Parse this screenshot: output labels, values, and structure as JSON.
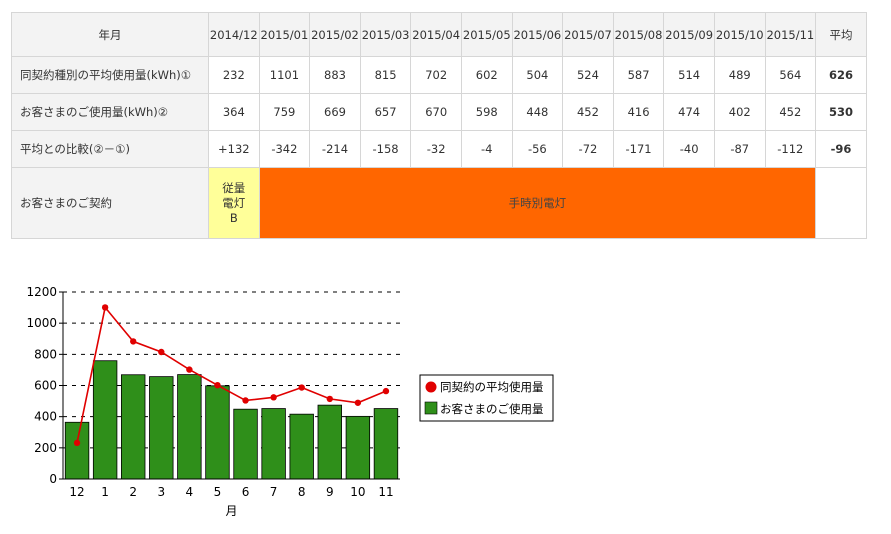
{
  "table": {
    "header_label": "年月",
    "months": [
      "2014/12",
      "2015/01",
      "2015/02",
      "2015/03",
      "2015/04",
      "2015/05",
      "2015/06",
      "2015/07",
      "2015/08",
      "2015/09",
      "2015/10",
      "2015/11"
    ],
    "avg_header": "平均",
    "rows": [
      {
        "label": "同契約種別の平均使用量(kWh)①",
        "values": [
          "232",
          "1101",
          "883",
          "815",
          "702",
          "602",
          "504",
          "524",
          "587",
          "514",
          "489",
          "564"
        ],
        "avg": "626"
      },
      {
        "label": "お客さまのご使用量(kWh)②",
        "values": [
          "364",
          "759",
          "669",
          "657",
          "670",
          "598",
          "448",
          "452",
          "416",
          "474",
          "402",
          "452"
        ],
        "avg": "530"
      },
      {
        "label": "平均との比較(②－①)",
        "values": [
          "+132",
          "-342",
          "-214",
          "-158",
          "-32",
          "-4",
          "-56",
          "-72",
          "-171",
          "-40",
          "-87",
          "-112"
        ],
        "avg": "-96"
      }
    ],
    "contract": {
      "label": "お客さまのご契約",
      "plan_a_lines": [
        "従量",
        "電灯",
        "B"
      ],
      "plan_b": "手時別電灯",
      "colors": {
        "plan_a": "#ffff99",
        "plan_b": "#ff6600"
      }
    }
  },
  "chart_data": {
    "type": "bar",
    "categories": [
      "12",
      "1",
      "2",
      "3",
      "4",
      "5",
      "6",
      "7",
      "8",
      "9",
      "10",
      "11"
    ],
    "series": [
      {
        "name": "同契約の平均使用量",
        "kind": "line",
        "color": "#e00000",
        "values": [
          232,
          1101,
          883,
          815,
          702,
          602,
          504,
          524,
          587,
          514,
          489,
          564
        ]
      },
      {
        "name": "お客さまのご使用量",
        "kind": "bar",
        "color": "#2f8f1a",
        "values": [
          364,
          759,
          669,
          657,
          670,
          598,
          448,
          452,
          416,
          474,
          402,
          452
        ]
      }
    ],
    "xlabel": "月",
    "ylabel": "",
    "ylim": [
      0,
      1200
    ],
    "yticks": [
      0,
      200,
      400,
      600,
      800,
      1000,
      1200
    ],
    "grid": "horizontal dashed",
    "legend": "right"
  }
}
